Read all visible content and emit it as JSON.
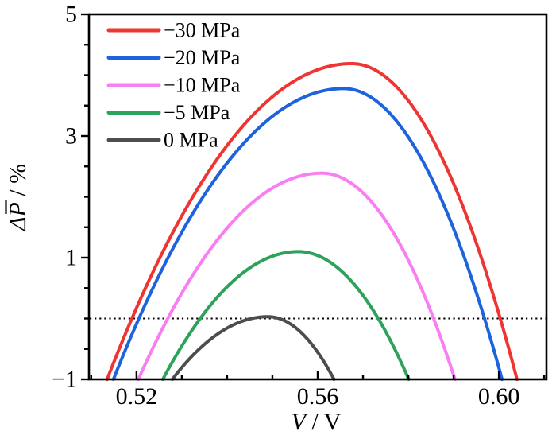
{
  "figure": {
    "background": "#ffffff",
    "frame_color": "#000000",
    "text_color": "#000000"
  },
  "chart_data": {
    "type": "line",
    "title": "",
    "xlabel": "V / V",
    "ylabel": "ΔP̄ / %",
    "xlabel_parts": {
      "symbol": "V",
      "sep": " / ",
      "unit": "V"
    },
    "ylabel_parts": {
      "delta": "Δ",
      "symbol": "P",
      "sep": " / %"
    },
    "xlim": [
      0.5095,
      0.6105
    ],
    "ylim": [
      -1,
      5
    ],
    "x_ticks": {
      "major": [
        0.52,
        0.56,
        0.6
      ],
      "labels": [
        "0.52",
        "0.56",
        "0.60"
      ],
      "minor_step": 0.01
    },
    "y_ticks": {
      "major": [
        -1,
        1,
        3,
        5
      ],
      "labels": [
        "−1",
        "1",
        "3",
        "5"
      ],
      "minor_step": 0.5
    },
    "grid": "off",
    "reference_line": {
      "y": 0,
      "style": "dotted",
      "color": "#000000"
    },
    "legend_position": "top-left-inside",
    "series": [
      {
        "name": "−30 MPa",
        "pressure_mpa": -30,
        "color": "#ee3532",
        "peak": {
          "v": 0.5675,
          "dP_pct": 4.19
        },
        "v_at_dP_minus1": [
          0.5135,
          0.604
        ],
        "zero_crossings_v": [
          0.519,
          0.6003
        ]
      },
      {
        "name": "−20 MPa",
        "pressure_mpa": -20,
        "color": "#1c63dd",
        "peak": {
          "v": 0.5657,
          "dP_pct": 3.78
        },
        "v_at_dP_minus1": [
          0.5149,
          0.6007
        ],
        "zero_crossings_v": [
          0.5205,
          0.597
        ]
      },
      {
        "name": "−10 MPa",
        "pressure_mpa": -10,
        "color": "#f97df3",
        "peak": {
          "v": 0.5609,
          "dP_pct": 2.39
        },
        "v_at_dP_minus1": [
          0.5204,
          0.5903
        ],
        "zero_crossings_v": [
          0.5269,
          0.5856
        ]
      },
      {
        "name": "−5 MPa",
        "pressure_mpa": -5,
        "color": "#2ca25b",
        "peak": {
          "v": 0.5557,
          "dP_pct": 1.1
        },
        "v_at_dP_minus1": [
          0.5258,
          0.5801
        ],
        "zero_crossings_v": [
          0.5341,
          0.5734
        ]
      },
      {
        "name": "0 MPa",
        "pressure_mpa": 0,
        "color": "#4d4d4d",
        "peak": {
          "v": 0.549,
          "dP_pct": 0.03
        },
        "v_at_dP_minus1": [
          0.5279,
          0.5636
        ],
        "zero_crossings_v": [
          0.5454,
          0.5515
        ]
      }
    ]
  }
}
